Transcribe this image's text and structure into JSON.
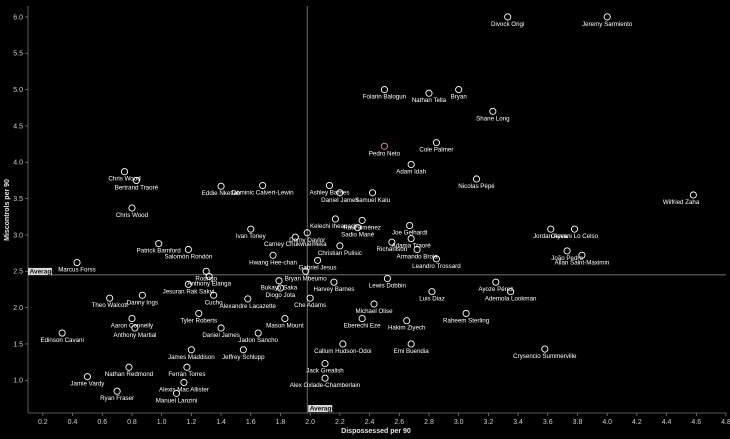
{
  "chart_data": {
    "type": "scatter",
    "title": "",
    "xlabel": "Dispossessed per 90",
    "ylabel": "Miscontrols per 90",
    "xlim": [
      0.1,
      4.8
    ],
    "ylim": [
      0.55,
      6.15
    ],
    "xticks": [
      "0.2",
      "0.4",
      "0.6",
      "0.8",
      "1.0",
      "1.2",
      "1.4",
      "1.6",
      "1.8",
      "2.0",
      "2.2",
      "2.4",
      "2.6",
      "2.8",
      "3.0",
      "3.2",
      "3.4",
      "3.6",
      "3.8",
      "4.0",
      "4.2",
      "4.4",
      "4.6",
      "4.8"
    ],
    "yticks": [
      "1.0",
      "1.5",
      "2.0",
      "2.5",
      "3.0",
      "3.5",
      "4.0",
      "4.5",
      "5.0",
      "5.5",
      "6.0"
    ],
    "average": {
      "x": 1.98,
      "y": 2.45,
      "label": "Average"
    },
    "highlight_color": "#f08a8a",
    "marker_color": "#ffffff",
    "points": [
      {
        "name": "Divock Origi",
        "x": 3.33,
        "y": 6.0
      },
      {
        "name": "Jeremy Sarmiento",
        "x": 4.0,
        "y": 6.0
      },
      {
        "name": "Folarin Balogun",
        "x": 2.5,
        "y": 5.0
      },
      {
        "name": "Nathan Tella",
        "x": 2.8,
        "y": 4.95
      },
      {
        "name": "Bryan",
        "x": 3.0,
        "y": 5.0
      },
      {
        "name": "Shane Long",
        "x": 3.23,
        "y": 4.7
      },
      {
        "name": "Pedro Neto",
        "x": 2.5,
        "y": 4.22,
        "highlight": true
      },
      {
        "name": "Cole Palmer",
        "x": 2.85,
        "y": 4.27
      },
      {
        "name": "Chris Wood",
        "x": 0.75,
        "y": 3.87
      },
      {
        "name": "Bertrand Traoré",
        "x": 0.83,
        "y": 3.75
      },
      {
        "name": "Adam Idah",
        "x": 2.68,
        "y": 3.97
      },
      {
        "name": "Nicolas Pépé",
        "x": 3.12,
        "y": 3.77
      },
      {
        "name": "Wilfried Zaha",
        "x": 4.58,
        "y": 3.55
      },
      {
        "name": "Eddie Nketiah",
        "x": 1.4,
        "y": 3.67
      },
      {
        "name": "Dominic Calvert-Lewin",
        "x": 1.68,
        "y": 3.68
      },
      {
        "name": "Ashley Barnes",
        "x": 2.13,
        "y": 3.68
      },
      {
        "name": "Daniel James",
        "x": 2.2,
        "y": 3.58
      },
      {
        "name": "Samuel Kalu",
        "x": 2.42,
        "y": 3.58
      },
      {
        "name": "Chris Wood",
        "x": 0.8,
        "y": 3.37
      },
      {
        "name": "Kelechi Iheanacho",
        "x": 2.17,
        "y": 3.22
      },
      {
        "name": "Raúl Jiménez",
        "x": 2.35,
        "y": 3.2
      },
      {
        "name": "Sadio Mané",
        "x": 2.32,
        "y": 3.1
      },
      {
        "name": "Ivan Toney",
        "x": 1.6,
        "y": 3.08
      },
      {
        "name": "Carney Chukwuemeka",
        "x": 1.9,
        "y": 2.97
      },
      {
        "name": "Dorny Daylor",
        "x": 1.98,
        "y": 3.03
      },
      {
        "name": "Joe Gelhardt",
        "x": 2.67,
        "y": 3.13
      },
      {
        "name": "Adama Traoré",
        "x": 2.68,
        "y": 2.95
      },
      {
        "name": "Jordan Ayew",
        "x": 3.62,
        "y": 3.08
      },
      {
        "name": "Giovani Lo Celso",
        "x": 3.78,
        "y": 3.08
      },
      {
        "name": "Patrick Bamford",
        "x": 0.98,
        "y": 2.88
      },
      {
        "name": "Salomón Rondón",
        "x": 1.18,
        "y": 2.8
      },
      {
        "name": "Christian Pulisic",
        "x": 2.2,
        "y": 2.85
      },
      {
        "name": "Richarlison",
        "x": 2.55,
        "y": 2.9
      },
      {
        "name": "Armando Broja",
        "x": 2.72,
        "y": 2.8
      },
      {
        "name": "João Pedro",
        "x": 3.73,
        "y": 2.78
      },
      {
        "name": "Allan Saint-Maximin",
        "x": 3.83,
        "y": 2.72
      },
      {
        "name": "Hwang Hee-chan",
        "x": 1.75,
        "y": 2.72
      },
      {
        "name": "Gabriel Jesus",
        "x": 2.05,
        "y": 2.65
      },
      {
        "name": "Leandro Trossard",
        "x": 2.85,
        "y": 2.67
      },
      {
        "name": "Marcus Forss",
        "x": 0.43,
        "y": 2.62
      },
      {
        "name": "Bryan Mbeumo",
        "x": 1.97,
        "y": 2.5
      },
      {
        "name": "Lewis Dobbin",
        "x": 2.52,
        "y": 2.4
      },
      {
        "name": "Anthony Elanga",
        "x": 1.32,
        "y": 2.43
      },
      {
        "name": "Rodrigo",
        "x": 1.3,
        "y": 2.5
      },
      {
        "name": "Bukayo Saka",
        "x": 1.79,
        "y": 2.37
      },
      {
        "name": "Diogo Jota",
        "x": 1.8,
        "y": 2.27
      },
      {
        "name": "Harvey Barnes",
        "x": 2.16,
        "y": 2.35
      },
      {
        "name": "Ayoze Pérez",
        "x": 3.25,
        "y": 2.35
      },
      {
        "name": "Jesuran Rak Sakyi",
        "x": 1.18,
        "y": 2.32
      },
      {
        "name": "Luis Diaz",
        "x": 2.82,
        "y": 2.22
      },
      {
        "name": "Ademola Lookman",
        "x": 3.35,
        "y": 2.22
      },
      {
        "name": "Danny Ings",
        "x": 0.87,
        "y": 2.17
      },
      {
        "name": "Cucho",
        "x": 1.35,
        "y": 2.17
      },
      {
        "name": "Che Adams",
        "x": 2.0,
        "y": 2.13
      },
      {
        "name": "Theo Walcott",
        "x": 0.65,
        "y": 2.13
      },
      {
        "name": "Alexandre Lacazette",
        "x": 1.58,
        "y": 2.12
      },
      {
        "name": "Michael Olise",
        "x": 2.43,
        "y": 2.05
      },
      {
        "name": "Raheem Sterling",
        "x": 3.05,
        "y": 1.92
      },
      {
        "name": "Aaron Connelly",
        "x": 0.8,
        "y": 1.85
      },
      {
        "name": "Tyler Roberts",
        "x": 1.25,
        "y": 1.92
      },
      {
        "name": "Mason Mount",
        "x": 1.83,
        "y": 1.85
      },
      {
        "name": "Eberechi Eze",
        "x": 2.35,
        "y": 1.85
      },
      {
        "name": "Hakim Ziyech",
        "x": 2.65,
        "y": 1.82
      },
      {
        "name": "Anthony Martial",
        "x": 0.82,
        "y": 1.72
      },
      {
        "name": "Daniel James",
        "x": 1.4,
        "y": 1.72
      },
      {
        "name": "Jadon Sancho",
        "x": 1.65,
        "y": 1.65
      },
      {
        "name": "Edinson Cavani",
        "x": 0.33,
        "y": 1.65
      },
      {
        "name": "Callum Hudson-Odoi",
        "x": 2.22,
        "y": 1.5
      },
      {
        "name": "Emi Buendia",
        "x": 2.68,
        "y": 1.5
      },
      {
        "name": "James Maddison",
        "x": 1.2,
        "y": 1.42
      },
      {
        "name": "Jeffrey Schlupp",
        "x": 1.55,
        "y": 1.42
      },
      {
        "name": "Crysencio Summerville",
        "x": 3.58,
        "y": 1.43
      },
      {
        "name": "Jack Grealish",
        "x": 2.1,
        "y": 1.23
      },
      {
        "name": "Nathan Redmond",
        "x": 0.78,
        "y": 1.18
      },
      {
        "name": "Ferrán Torres",
        "x": 1.17,
        "y": 1.18
      },
      {
        "name": "Jamie Vardy",
        "x": 0.5,
        "y": 1.05
      },
      {
        "name": "Alexis Mac Allister",
        "x": 1.15,
        "y": 0.97
      },
      {
        "name": "Alex Oxlade-Chamberlain",
        "x": 2.1,
        "y": 1.03
      },
      {
        "name": "Ryan Fraser",
        "x": 0.7,
        "y": 0.85
      },
      {
        "name": "Manuel Lanzini",
        "x": 1.1,
        "y": 0.82
      }
    ]
  }
}
